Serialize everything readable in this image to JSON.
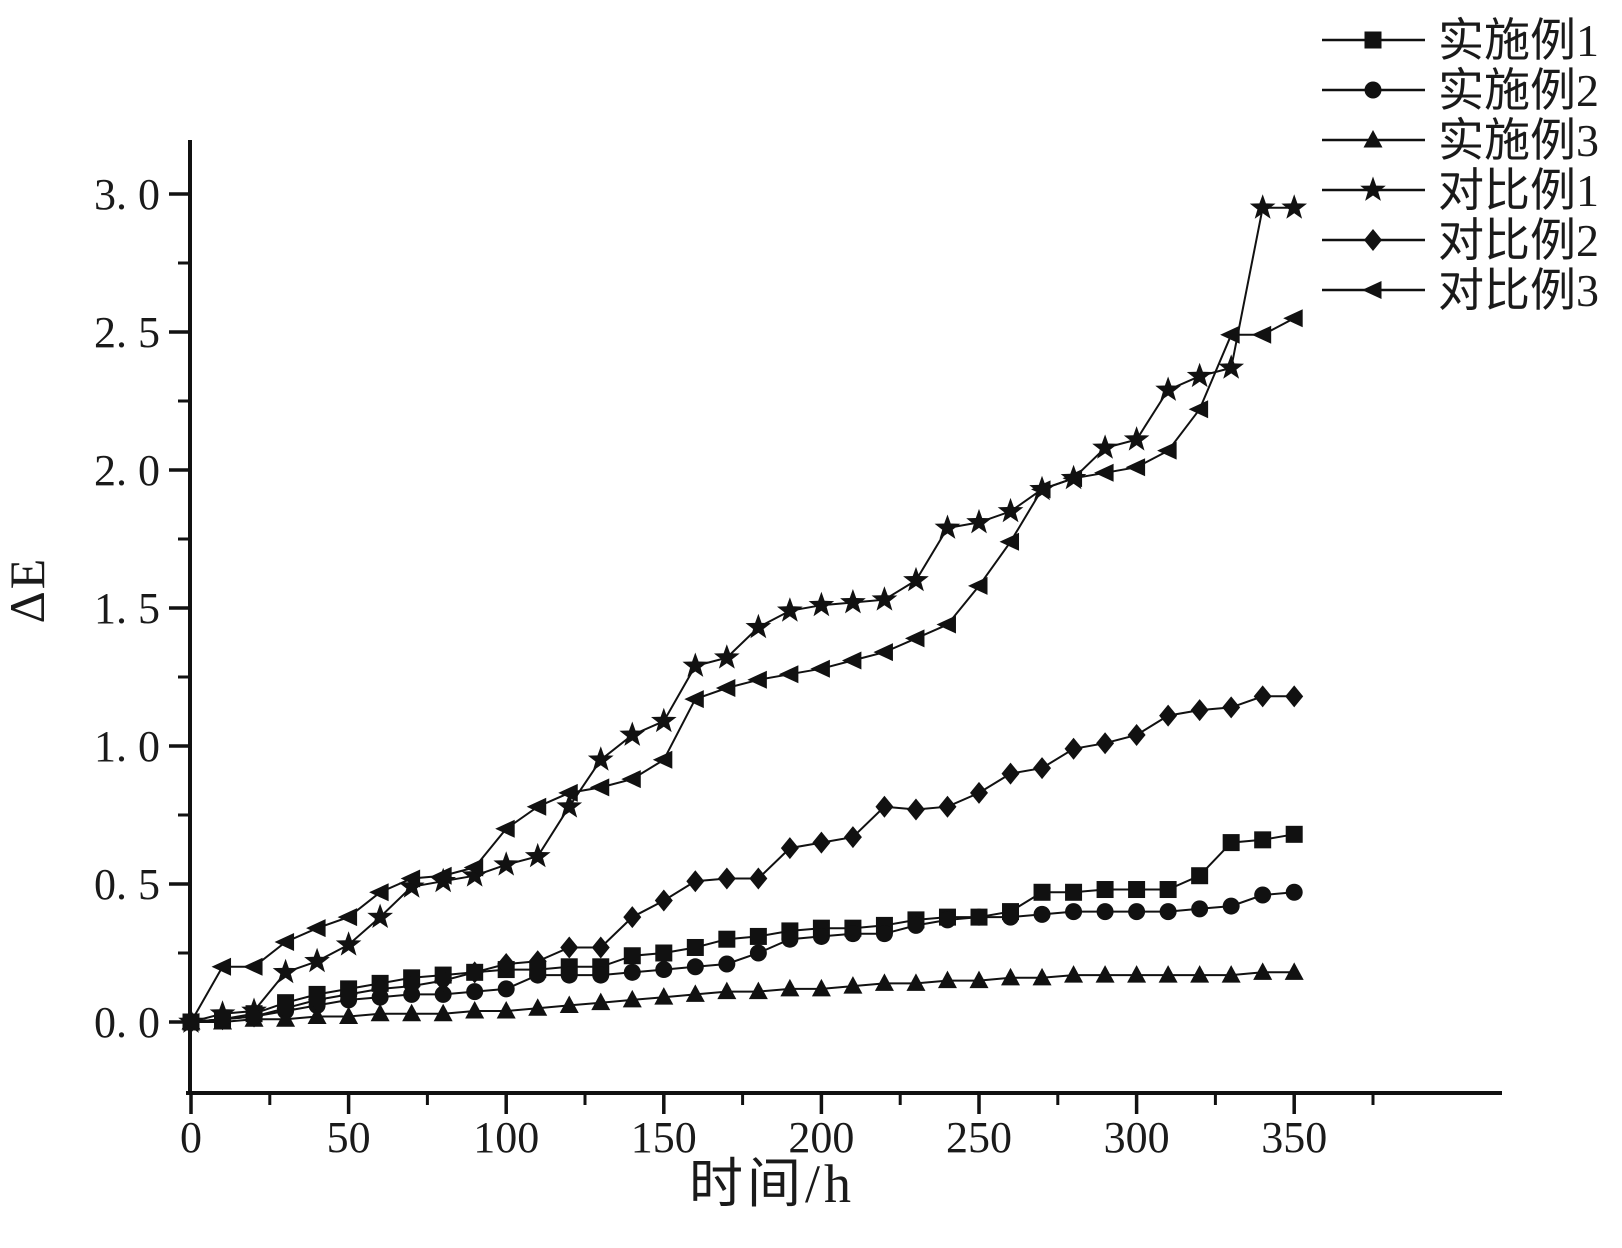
{
  "figure": {
    "background": "#ffffff",
    "ink": "#111111",
    "text_color": "#1a1a1a"
  },
  "chart_data": {
    "type": "line",
    "title": "",
    "xlabel": "时间/h",
    "ylabel": "ΔE",
    "grid": false,
    "legend_position": "top-right",
    "xlim": [
      0,
      415
    ],
    "ylim": [
      -0.25,
      3.2
    ],
    "x_ticks_major": [
      0,
      50,
      100,
      150,
      200,
      250,
      300,
      350
    ],
    "x_tick_labels": [
      "0",
      "50",
      "100",
      "150",
      "200",
      "250",
      "300",
      "350"
    ],
    "x_ticks_minor": [
      25,
      75,
      125,
      175,
      225,
      275,
      325,
      375
    ],
    "y_ticks_major": [
      0.0,
      0.5,
      1.0,
      1.5,
      2.0,
      2.5,
      3.0
    ],
    "y_tick_labels": [
      "0. 0",
      "0. 5",
      "1. 0",
      "1. 5",
      "2. 0",
      "2. 5",
      "3. 0"
    ],
    "y_ticks_minor": [
      0.25,
      0.75,
      1.25,
      1.75,
      2.25,
      2.75
    ],
    "x": [
      0,
      10,
      20,
      30,
      40,
      50,
      60,
      70,
      80,
      90,
      100,
      110,
      120,
      130,
      140,
      150,
      160,
      170,
      180,
      190,
      200,
      210,
      220,
      230,
      240,
      250,
      260,
      270,
      280,
      290,
      300,
      310,
      320,
      330,
      340,
      350
    ],
    "series": [
      {
        "id": "shili1",
        "label": "实施例1",
        "marker": "square",
        "color": "#111111",
        "values": [
          0,
          0.01,
          0.03,
          0.07,
          0.1,
          0.12,
          0.14,
          0.16,
          0.17,
          0.18,
          0.19,
          0.19,
          0.2,
          0.2,
          0.24,
          0.25,
          0.27,
          0.3,
          0.31,
          0.33,
          0.34,
          0.34,
          0.35,
          0.37,
          0.38,
          0.38,
          0.4,
          0.47,
          0.47,
          0.48,
          0.48,
          0.48,
          0.53,
          0.65,
          0.66,
          0.68
        ]
      },
      {
        "id": "shili2",
        "label": "实施例2",
        "marker": "circle",
        "color": "#111111",
        "values": [
          0,
          0.01,
          0.02,
          0.04,
          0.06,
          0.08,
          0.09,
          0.1,
          0.1,
          0.11,
          0.12,
          0.17,
          0.17,
          0.17,
          0.18,
          0.19,
          0.2,
          0.21,
          0.25,
          0.3,
          0.31,
          0.32,
          0.32,
          0.35,
          0.37,
          0.38,
          0.38,
          0.39,
          0.4,
          0.4,
          0.4,
          0.4,
          0.41,
          0.42,
          0.46,
          0.47
        ]
      },
      {
        "id": "shili3",
        "label": "实施例3",
        "marker": "triangle-up",
        "color": "#111111",
        "values": [
          0,
          0,
          0.01,
          0.01,
          0.02,
          0.02,
          0.03,
          0.03,
          0.03,
          0.04,
          0.04,
          0.05,
          0.06,
          0.07,
          0.08,
          0.09,
          0.1,
          0.11,
          0.11,
          0.12,
          0.12,
          0.13,
          0.14,
          0.14,
          0.15,
          0.15,
          0.16,
          0.16,
          0.17,
          0.17,
          0.17,
          0.17,
          0.17,
          0.17,
          0.18,
          0.18
        ]
      },
      {
        "id": "duibi1",
        "label": "对比例1",
        "marker": "star",
        "color": "#111111",
        "values": [
          0,
          0.03,
          0.04,
          0.18,
          0.22,
          0.28,
          0.38,
          0.49,
          0.51,
          0.53,
          0.57,
          0.6,
          0.78,
          0.95,
          1.04,
          1.09,
          1.29,
          1.32,
          1.43,
          1.49,
          1.51,
          1.52,
          1.53,
          1.6,
          1.79,
          1.81,
          1.85,
          1.93,
          1.97,
          2.08,
          2.11,
          2.29,
          2.34,
          2.37,
          2.95,
          2.95
        ]
      },
      {
        "id": "duibi2",
        "label": "对比例2",
        "marker": "diamond",
        "color": "#111111",
        "values": [
          0,
          0.01,
          0.02,
          0.05,
          0.08,
          0.1,
          0.12,
          0.13,
          0.15,
          0.18,
          0.21,
          0.22,
          0.27,
          0.27,
          0.38,
          0.44,
          0.51,
          0.52,
          0.52,
          0.63,
          0.65,
          0.67,
          0.78,
          0.77,
          0.78,
          0.83,
          0.9,
          0.92,
          0.99,
          1.01,
          1.04,
          1.11,
          1.13,
          1.14,
          1.18,
          1.18
        ]
      },
      {
        "id": "duibi3",
        "label": "对比例3",
        "marker": "triangle-left",
        "color": "#111111",
        "values": [
          0,
          0.2,
          0.2,
          0.29,
          0.34,
          0.38,
          0.47,
          0.52,
          0.53,
          0.56,
          0.7,
          0.78,
          0.83,
          0.85,
          0.88,
          0.95,
          1.17,
          1.21,
          1.24,
          1.26,
          1.28,
          1.31,
          1.34,
          1.39,
          1.44,
          1.58,
          1.74,
          1.93,
          1.97,
          1.99,
          2.01,
          2.07,
          2.22,
          2.49,
          2.49,
          2.55
        ]
      }
    ]
  }
}
